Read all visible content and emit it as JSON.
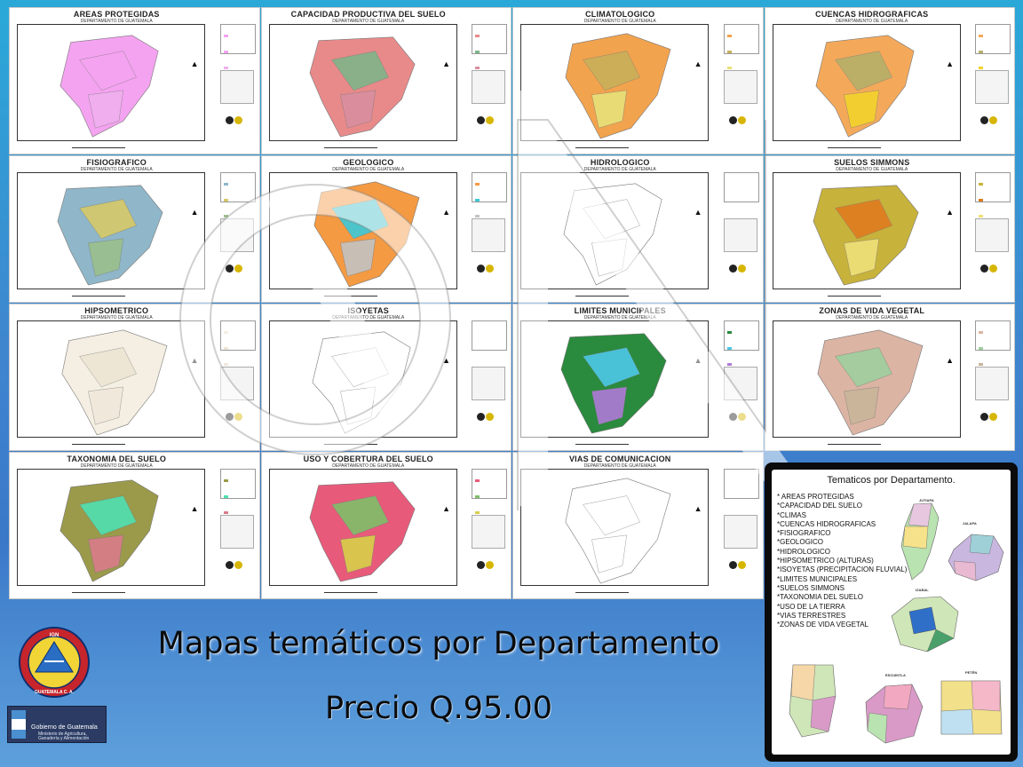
{
  "tiles": [
    {
      "title": "AREAS PROTEGIDAS",
      "subtitle": "DEPARTAMENTO DE GUATEMALA",
      "palette": [
        "#f4a3f0",
        "#f4a3f0",
        "#f0b0ee"
      ]
    },
    {
      "title": "CAPACIDAD PRODUCTIVA DEL SUELO",
      "subtitle": "DEPARTAMENTO DE GUATEMALA",
      "palette": [
        "#e88a8a",
        "#7fb589",
        "#d98fa0"
      ]
    },
    {
      "title": "CLIMATOLOGICO",
      "subtitle": "DEPARTAMENTO DE GUATEMALA",
      "palette": [
        "#f2a34e",
        "#c8b05a",
        "#e8e27a"
      ]
    },
    {
      "title": "CUENCAS HIDROGRAFICAS",
      "subtitle": "DEPARTAMENTO DE GUATEMALA",
      "palette": [
        "#f4a95a",
        "#b5b06a",
        "#f3d32c"
      ]
    },
    {
      "title": "FISIOGRAFICO",
      "subtitle": "DEPARTAMENTO DE GUATEMALA",
      "palette": [
        "#8fb7c9",
        "#d7c968",
        "#9bbf8c"
      ]
    },
    {
      "title": "GEOLOGICO",
      "subtitle": "DEPARTAMENTO DE GUATEMALA",
      "palette": [
        "#f49a43",
        "#3cc9d8",
        "#c3c3c3"
      ]
    },
    {
      "title": "HIDROLOGICO",
      "subtitle": "DEPARTAMENTO DE GUATEMALA",
      "palette": [
        "#ffffff",
        "#ffffff",
        "#ffffff"
      ]
    },
    {
      "title": "SUELOS SIMMONS",
      "subtitle": "DEPARTAMENTO DE GUATEMALA",
      "palette": [
        "#c7b23b",
        "#e07b20",
        "#f0e07a"
      ]
    },
    {
      "title": "HIPSOMETRICO",
      "subtitle": "DEPARTAMENTO DE GUATEMALA",
      "palette": [
        "#f4efe2",
        "#eee6d4",
        "#f1e8dc"
      ]
    },
    {
      "title": "ISOYETAS",
      "subtitle": "DEPARTAMENTO DE GUATEMALA",
      "palette": [
        "#ffffff",
        "#ffffff",
        "#ffffff"
      ]
    },
    {
      "title": "LIMITES MUNICIPALES",
      "subtitle": "DEPARTAMENTO DE GUATEMALA",
      "palette": [
        "#2a8a3e",
        "#4dc8e8",
        "#b07ad8"
      ]
    },
    {
      "title": "ZONAS DE VIDA VEGETAL",
      "subtitle": "DEPARTAMENTO DE GUATEMALA",
      "palette": [
        "#dcb4a4",
        "#9ecf9e",
        "#c9b59a"
      ]
    },
    {
      "title": "TAXONOMIA DEL SUELO",
      "subtitle": "DEPARTAMENTO DE GUATEMALA",
      "palette": [
        "#9a9a4a",
        "#4fe0b0",
        "#d97b8a"
      ]
    },
    {
      "title": "USO Y COBERTURA DEL SUELO",
      "subtitle": "DEPARTAMENTO DE GUATEMALA",
      "palette": [
        "#e85a7a",
        "#7fbf6a",
        "#d8d04a"
      ]
    },
    {
      "title": "VIAS DE COMUNICACION",
      "subtitle": "DEPARTAMENTO DE GUATEMALA",
      "palette": [
        "#ffffff",
        "#ffffff",
        "#ffffff"
      ]
    }
  ],
  "panel": {
    "title": "Tematicos por Departamento.",
    "items": [
      "* AREAS PROTEGIDAS",
      "*CAPACIDAD DEL SUELO",
      "*CLIMAS",
      "*CUENCAS HIDROGRAFICAS",
      "*FISIOGRAFICO",
      "*GEOLOGICO",
      "*HIDROLOGICO",
      "*HIPSOMETRICO (ALTURAS)",
      "*ISOYETAS (PRECIPITACION FLUVIAL)",
      "*LIMITES MUNICIPALES",
      "*SUELOS SIMMONS",
      "*TAXONOMIA DEL SUELO",
      "*USO DE LA TIERRA",
      "*VIAS TERRESTRES",
      "*ZONAS DE VIDA VEGETAL"
    ],
    "maps": [
      {
        "label": "JUTIAPA",
        "color": "#b9e3b0"
      },
      {
        "label": "JALAPA",
        "color": "#c9b7e0"
      },
      {
        "label": "IZABAL",
        "color": "#4aa06a"
      },
      {
        "label": "",
        "color": "#cfe6b8"
      },
      {
        "label": "ESCUINTLA",
        "color": "#d99ac8"
      },
      {
        "label": "PETÉN",
        "color": "#f2e08a"
      }
    ]
  },
  "headline": "Mapas temáticos por Departamento",
  "price": "Precio Q.95.00",
  "logos": {
    "ign_ring_text": "INSTITUTO GEOGRAFICO NACIONAL",
    "ign_bottom_text": "GUATEMALA C. A.",
    "gob_title": "Gobierno de Guatemala",
    "gob_sub1": "Ministerio de Agricultura,",
    "gob_sub2": "Ganadería y Alimentación"
  },
  "colors": {
    "background_top": "#2aa9d8",
    "background_bottom": "#3a78c8",
    "panel_border": "#0b0b0b"
  }
}
